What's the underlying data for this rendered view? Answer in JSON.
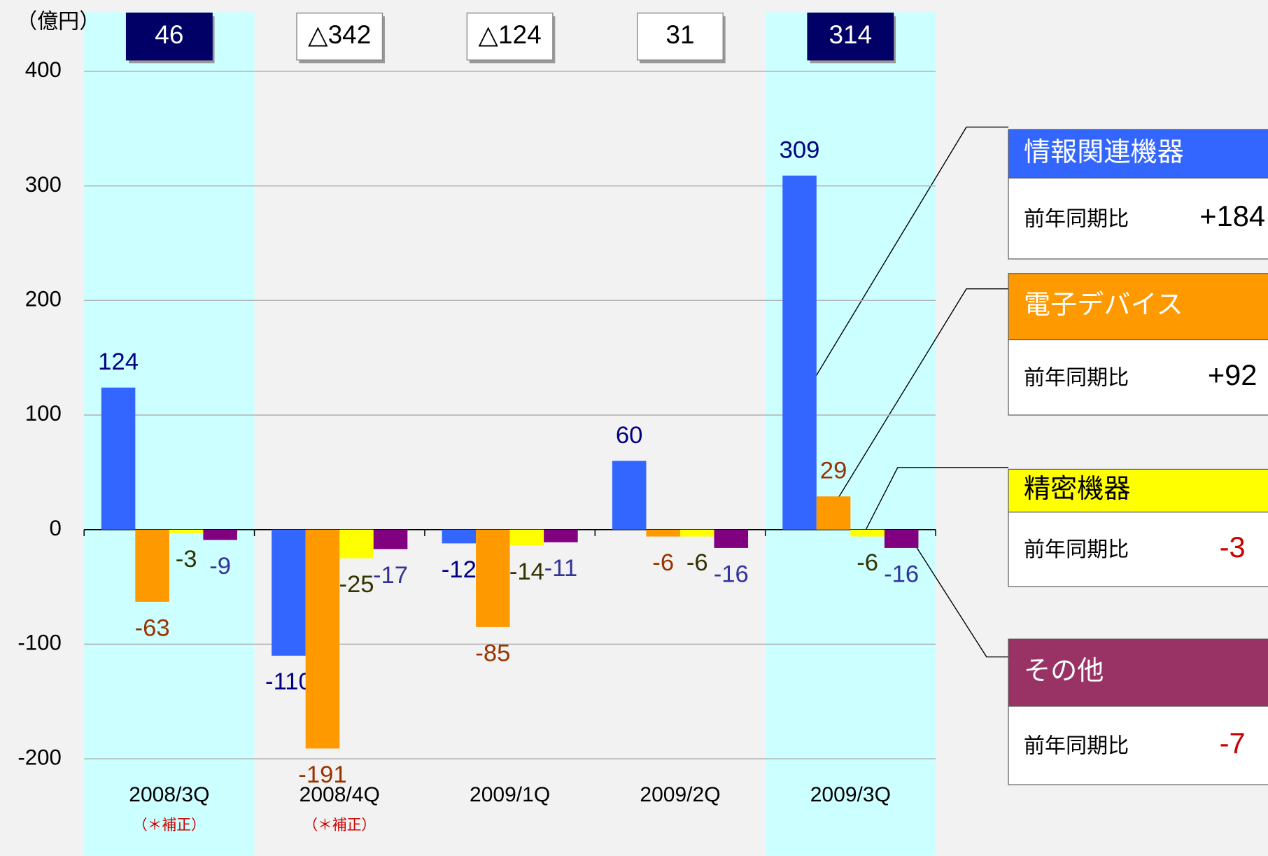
{
  "chart_data": {
    "type": "bar",
    "unit_label": "（億円）",
    "categories": [
      "2008/3Q",
      "2008/4Q",
      "2009/1Q",
      "2009/2Q",
      "2009/3Q"
    ],
    "category_notes": [
      "（＊補正）",
      "（＊補正）",
      null,
      null,
      null
    ],
    "highlight": [
      0,
      4
    ],
    "highlight_color": "#ccffff",
    "totals": {
      "values": [
        46,
        -342,
        -124,
        31,
        314
      ],
      "value_labels": [
        "46",
        "△342",
        "△124",
        "31",
        "314"
      ]
    },
    "series": [
      {
        "name": "情報関連機器",
        "color": "#3366ff",
        "label_color": "#000080",
        "values": [
          124,
          -110,
          -12,
          60,
          309
        ],
        "yoy": 184,
        "yoy_label": "+184"
      },
      {
        "name": "電子デバイス",
        "color": "#ff9900",
        "label_color": "#993300",
        "values": [
          -63,
          -191,
          -85,
          -6,
          29
        ],
        "yoy": 92,
        "yoy_label": "+92"
      },
      {
        "name": "精密機器",
        "color": "#ffff00",
        "label_color": "#333300",
        "values": [
          -3,
          -25,
          -14,
          -6,
          -6
        ],
        "yoy": -3
      },
      {
        "name": "その他",
        "color": "#800080",
        "label_color": "#333399",
        "values": [
          -9,
          -17,
          -11,
          -16,
          -16
        ],
        "yoy": -7
      }
    ],
    "yoy_title": "前年同期比",
    "ylim": [
      -200,
      400
    ],
    "yticks": [
      -200,
      -100,
      0,
      100,
      200,
      300,
      400
    ],
    "grid": true
  }
}
